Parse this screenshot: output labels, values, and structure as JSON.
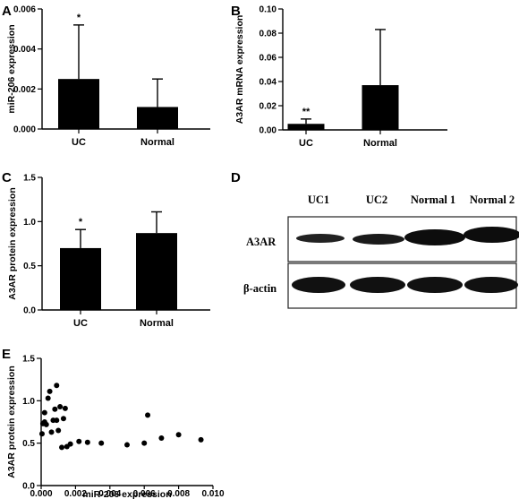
{
  "panels": {
    "A": "A",
    "B": "B",
    "C": "C",
    "D": "D",
    "E": "E"
  },
  "chart_data": [
    {
      "panel": "A",
      "type": "bar",
      "ylabel": "miR-206 expression",
      "categories": [
        "UC",
        "Normal"
      ],
      "values": [
        0.0025,
        0.0011
      ],
      "error_upper": [
        0.0052,
        0.0025
      ],
      "significance": [
        "*",
        ""
      ],
      "ylim": [
        0,
        0.006
      ],
      "yticks": [
        0.0,
        0.002,
        0.004,
        0.006
      ],
      "ytick_labels": [
        "0.000",
        "0.002",
        "0.004",
        "0.006"
      ]
    },
    {
      "panel": "B",
      "type": "bar",
      "ylabel": "A3AR mRNA expression",
      "categories": [
        "UC",
        "Normal"
      ],
      "values": [
        0.005,
        0.037
      ],
      "error_upper": [
        0.009,
        0.083
      ],
      "significance": [
        "**",
        ""
      ],
      "ylim": [
        0,
        0.1
      ],
      "yticks": [
        0.0,
        0.02,
        0.04,
        0.06,
        0.08,
        0.1
      ],
      "ytick_labels": [
        "0.00",
        "0.02",
        "0.04",
        "0.06",
        "0.08",
        "0.10"
      ]
    },
    {
      "panel": "C",
      "type": "bar",
      "ylabel": "A3AR protein expression",
      "categories": [
        "UC",
        "Normal"
      ],
      "values": [
        0.7,
        0.87
      ],
      "error_upper": [
        0.91,
        1.11
      ],
      "significance": [
        "*",
        ""
      ],
      "ylim": [
        0,
        1.5
      ],
      "yticks": [
        0.0,
        0.5,
        1.0,
        1.5
      ],
      "ytick_labels": [
        "0.0",
        "0.5",
        "1.0",
        "1.5"
      ]
    },
    {
      "panel": "E",
      "type": "scatter",
      "xlabel": "miR-206 expression",
      "ylabel": "A3AR protein expression",
      "xlim": [
        0,
        0.01
      ],
      "ylim": [
        0.0,
        1.5
      ],
      "xticks": [
        0.0,
        0.002,
        0.004,
        0.006,
        0.008,
        0.01
      ],
      "xtick_labels": [
        "0.000",
        "0.002",
        "0.004",
        "0.006",
        "0.008",
        "0.010"
      ],
      "yticks": [
        0.0,
        0.5,
        1.0,
        1.5
      ],
      "ytick_labels": [
        "0.0",
        "0.5",
        "1.0",
        "1.5"
      ],
      "points": [
        [
          5e-05,
          0.61
        ],
        [
          0.0001,
          0.73
        ],
        [
          0.0002,
          0.75
        ],
        [
          0.0002,
          0.86
        ],
        [
          0.0003,
          0.72
        ],
        [
          0.0004,
          1.03
        ],
        [
          0.0005,
          1.11
        ],
        [
          0.0006,
          0.63
        ],
        [
          0.0007,
          0.77
        ],
        [
          0.0008,
          0.9
        ],
        [
          0.0009,
          0.77
        ],
        [
          0.0009,
          1.18
        ],
        [
          0.001,
          0.65
        ],
        [
          0.0011,
          0.93
        ],
        [
          0.0012,
          0.45
        ],
        [
          0.0013,
          0.79
        ],
        [
          0.0014,
          0.91
        ],
        [
          0.0015,
          0.46
        ],
        [
          0.0017,
          0.49
        ],
        [
          0.0022,
          0.52
        ],
        [
          0.0027,
          0.51
        ],
        [
          0.0035,
          0.5
        ],
        [
          0.005,
          0.48
        ],
        [
          0.006,
          0.5
        ],
        [
          0.0062,
          0.83
        ],
        [
          0.007,
          0.56
        ],
        [
          0.008,
          0.6
        ],
        [
          0.0093,
          0.54
        ]
      ]
    }
  ],
  "blot": {
    "lanes": [
      "UC1",
      "UC2",
      "Normal 1",
      "Normal 2"
    ],
    "rows": [
      "A3AR",
      "β-actin"
    ]
  }
}
